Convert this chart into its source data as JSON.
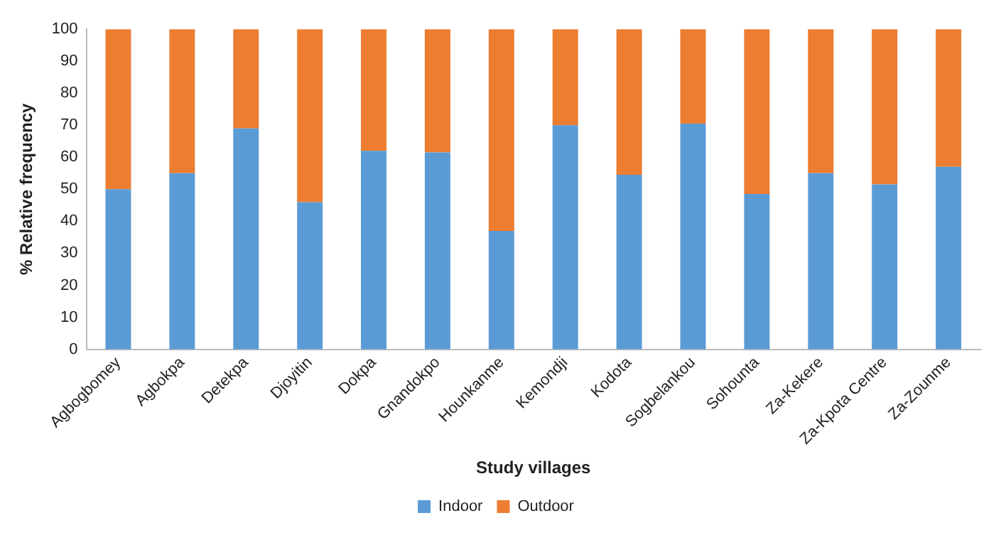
{
  "chart_data": {
    "type": "bar",
    "stacked": true,
    "xlabel": "Study villages",
    "ylabel": "% Relative frequency",
    "categories": [
      "Agbogbomey",
      "Agbokpa",
      "Detekpa",
      "Djoyitin",
      "Dokpa",
      "Gnandokpo",
      "Hounkanme",
      "Kemondji",
      "Kodota",
      "Sogbelankou",
      "Sohounta",
      "Za-Kekere",
      "Za-Kpota Centre",
      "Za-Zounme"
    ],
    "series": [
      {
        "name": "Indoor",
        "color": "#5b9bd5",
        "values": [
          50,
          55,
          69,
          46,
          62,
          61.5,
          37,
          70,
          54.5,
          70.5,
          48.5,
          55,
          51.5,
          57
        ]
      },
      {
        "name": "Outdoor",
        "color": "#ed7d31",
        "values": [
          50,
          45,
          31,
          54,
          38,
          38.5,
          63,
          30,
          45.5,
          29.5,
          51.5,
          45,
          48.5,
          43
        ]
      }
    ],
    "ylim": [
      0,
      100
    ],
    "yticks": [
      0,
      10,
      20,
      30,
      40,
      50,
      60,
      70,
      80,
      90,
      100
    ],
    "grid": false,
    "legend": "bottom"
  }
}
